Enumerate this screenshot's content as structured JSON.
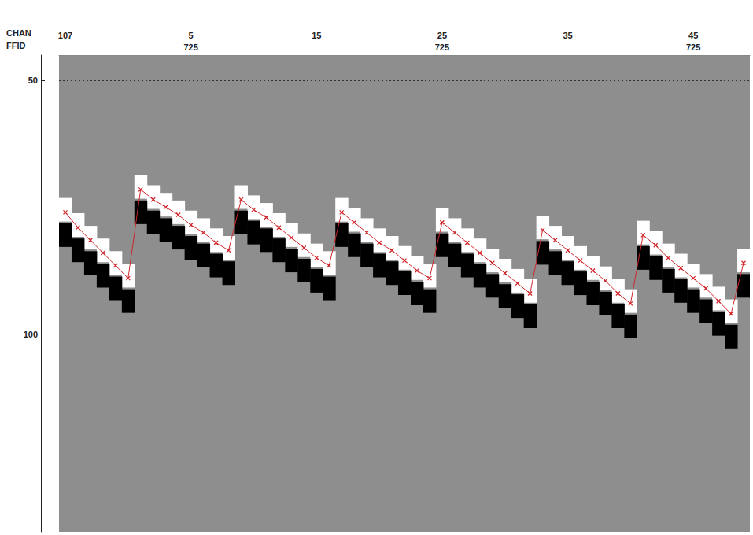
{
  "chart_data": {
    "type": "line",
    "x_label": "CHAN",
    "x2_label": "FFID",
    "categories": [
      "107",
      null,
      null,
      null,
      null,
      null,
      null,
      null,
      null,
      null,
      "5",
      null,
      null,
      null,
      null,
      null,
      null,
      null,
      null,
      null,
      "15",
      null,
      null,
      null,
      null,
      null,
      null,
      null,
      null,
      null,
      "25",
      null,
      null,
      null,
      null,
      null,
      null,
      null,
      null,
      null,
      "35",
      null,
      null,
      null,
      null,
      null,
      null,
      null,
      null,
      null,
      "45",
      null,
      null,
      null,
      null
    ],
    "x2_categories": [
      null,
      null,
      null,
      null,
      null,
      null,
      null,
      null,
      null,
      null,
      "725",
      null,
      null,
      null,
      null,
      null,
      null,
      null,
      null,
      null,
      null,
      null,
      null,
      null,
      null,
      null,
      null,
      null,
      null,
      null,
      "725",
      null,
      null,
      null,
      null,
      null,
      null,
      null,
      null,
      null,
      null,
      null,
      null,
      null,
      null,
      null,
      null,
      null,
      null,
      null,
      "725",
      null,
      null,
      null,
      null
    ],
    "ylim": [
      45,
      139
    ],
    "yticks": [
      50,
      100
    ],
    "grid": true,
    "series": [
      {
        "type": "line",
        "color": "#d0262b",
        "marker": "x",
        "values": [
          76,
          79,
          81.5,
          84,
          86.5,
          89,
          71.5,
          73.5,
          75,
          76.5,
          78.5,
          80,
          82,
          83.5,
          73.5,
          75.5,
          77,
          79,
          81,
          83,
          85,
          86.5,
          76,
          78,
          80,
          82,
          83.5,
          85.5,
          87.5,
          89,
          78,
          80,
          82,
          84,
          86,
          88,
          90,
          92,
          79.5,
          81.5,
          83.5,
          85.5,
          87.5,
          89.5,
          92,
          94,
          80.5,
          82.5,
          85,
          87,
          89,
          91,
          93.5,
          96,
          86
        ]
      },
      {
        "type": "band",
        "color": "#ffffff",
        "values": [
          75.5,
          78.5,
          81,
          83.5,
          86,
          88.5,
          71,
          73,
          74.5,
          76,
          78,
          79.5,
          81.5,
          83,
          73,
          75,
          76.5,
          78.5,
          80.5,
          82.5,
          84.5,
          86,
          75.5,
          77.5,
          79.5,
          81.5,
          83,
          85,
          87,
          88.5,
          77.5,
          79.5,
          81.5,
          83.5,
          85.5,
          87.5,
          89.5,
          91.5,
          79,
          81,
          83,
          85,
          87,
          89,
          91.5,
          93.5,
          80,
          82,
          84.5,
          86.5,
          88.5,
          90.5,
          93,
          95.5,
          85.5
        ]
      },
      {
        "type": "band",
        "color": "#000000",
        "values": [
          80.5,
          83.5,
          86,
          88.5,
          91,
          93.5,
          76,
          78,
          79.5,
          81,
          83,
          84.5,
          86.5,
          88,
          78,
          80,
          81.5,
          83.5,
          85.5,
          87.5,
          89.5,
          91,
          80.5,
          82.5,
          84.5,
          86.5,
          88,
          90,
          92,
          93.5,
          82.5,
          84.5,
          86.5,
          88.5,
          90.5,
          92.5,
          94.5,
          96.5,
          84,
          86,
          88,
          90,
          92,
          94,
          96.5,
          98.5,
          85,
          87,
          89.5,
          91.5,
          93.5,
          95.5,
          98,
          100.5,
          90.5
        ]
      }
    ]
  }
}
